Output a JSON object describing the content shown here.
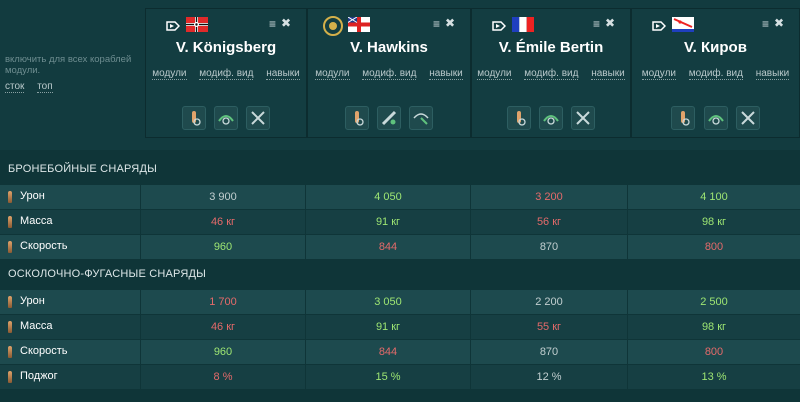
{
  "sidebar": {
    "hint": "включить для всех кораблей модули.",
    "links": [
      "сток",
      "топ"
    ]
  },
  "ships": [
    {
      "name": "V. Königsberg",
      "flag": "germany-flag",
      "tabs": [
        "модули",
        "модиф. вид",
        "навыки"
      ]
    },
    {
      "name": "V. Hawkins",
      "flag": "uk-flag",
      "tabs": [
        "модули",
        "модиф. вид",
        "навыки"
      ]
    },
    {
      "name": "V. Émile Bertin",
      "flag": "france-flag",
      "tabs": [
        "модули",
        "модиф. вид",
        "навыки"
      ]
    },
    {
      "name": "V. Киров",
      "flag": "ussr-flag",
      "tabs": [
        "модули",
        "модиф. вид",
        "навыки"
      ]
    }
  ],
  "icons": {
    "menu": "≡",
    "close": "✖"
  },
  "ap": {
    "title": "БРОНЕБОЙНЫЕ СНАРЯДЫ",
    "rows": [
      {
        "label": "Урон",
        "values": [
          "3 900",
          "4 050",
          "3 200",
          "4 100"
        ],
        "status": [
          "neutral",
          "good",
          "bad",
          "good"
        ]
      },
      {
        "label": "Масса",
        "values": [
          "46 кг",
          "91 кг",
          "56 кг",
          "98 кг"
        ],
        "status": [
          "bad",
          "good",
          "bad",
          "good"
        ]
      },
      {
        "label": "Скорость",
        "values": [
          "960",
          "844",
          "870",
          "800"
        ],
        "status": [
          "good",
          "bad",
          "neutral",
          "bad"
        ]
      }
    ]
  },
  "he": {
    "title": "ОСКОЛОЧНО-ФУГАСНЫЕ СНАРЯДЫ",
    "rows": [
      {
        "label": "Урон",
        "values": [
          "1 700",
          "3 050",
          "2 200",
          "2 500"
        ],
        "status": [
          "bad",
          "good",
          "neutral",
          "good"
        ]
      },
      {
        "label": "Масса",
        "values": [
          "46 кг",
          "91 кг",
          "55 кг",
          "98 кг"
        ],
        "status": [
          "bad",
          "good",
          "bad",
          "good"
        ]
      },
      {
        "label": "Скорость",
        "values": [
          "960",
          "844",
          "870",
          "800"
        ],
        "status": [
          "good",
          "bad",
          "neutral",
          "bad"
        ]
      },
      {
        "label": "Поджог",
        "values": [
          "8 %",
          "15 %",
          "12 %",
          "13 %"
        ],
        "status": [
          "bad",
          "good",
          "neutral",
          "good"
        ]
      }
    ]
  },
  "colors": {
    "good": "#9ee673",
    "bad": "#e46a6a",
    "neutral": "#c2cfd0"
  }
}
